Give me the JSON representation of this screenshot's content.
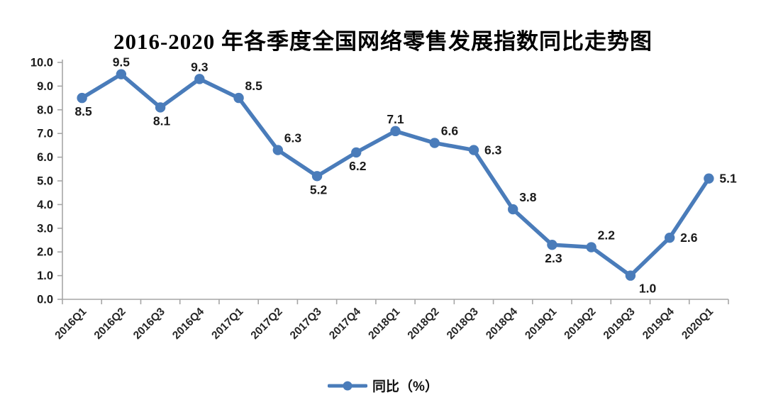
{
  "title": "2016-2020 年各季度全国网络零售发展指数同比走势图",
  "legend": {
    "label": "同比（%）"
  },
  "colors": {
    "line": "#4a7cba",
    "marker": "#4a7cba",
    "axis": "#a6a6a6",
    "tick_label": "#1a1a1a",
    "data_label": "#1a1a1a",
    "background": "#ffffff"
  },
  "chart_data": {
    "type": "line",
    "title": "2016-2020 年各季度全国网络零售发展指数同比走势图",
    "categories": [
      "2016Q1",
      "2016Q2",
      "2016Q3",
      "2016Q4",
      "2017Q1",
      "2017Q2",
      "2017Q3",
      "2017Q4",
      "2018Q1",
      "2018Q2",
      "2018Q3",
      "2018Q4",
      "2019Q1",
      "2019Q2",
      "2019Q3",
      "2019Q4",
      "2020Q1"
    ],
    "series": [
      {
        "name": "同比（%）",
        "values": [
          8.5,
          9.5,
          8.1,
          9.3,
          8.5,
          6.3,
          5.2,
          6.2,
          7.1,
          6.6,
          6.3,
          3.8,
          2.3,
          2.2,
          1.0,
          2.6,
          5.1
        ]
      }
    ],
    "xlabel": "",
    "ylabel": "",
    "ylim": [
      0,
      10
    ],
    "ytick_step": 1,
    "ytick_decimals": 1,
    "grid": false,
    "legend_position": "bottom",
    "data_labels": true,
    "label_placements": [
      "below",
      "above",
      "below",
      "above",
      "above-right",
      "above-right",
      "below",
      "below",
      "above",
      "above-right",
      "right",
      "above-right",
      "below",
      "above-right",
      "below-right",
      "right",
      "right"
    ]
  }
}
